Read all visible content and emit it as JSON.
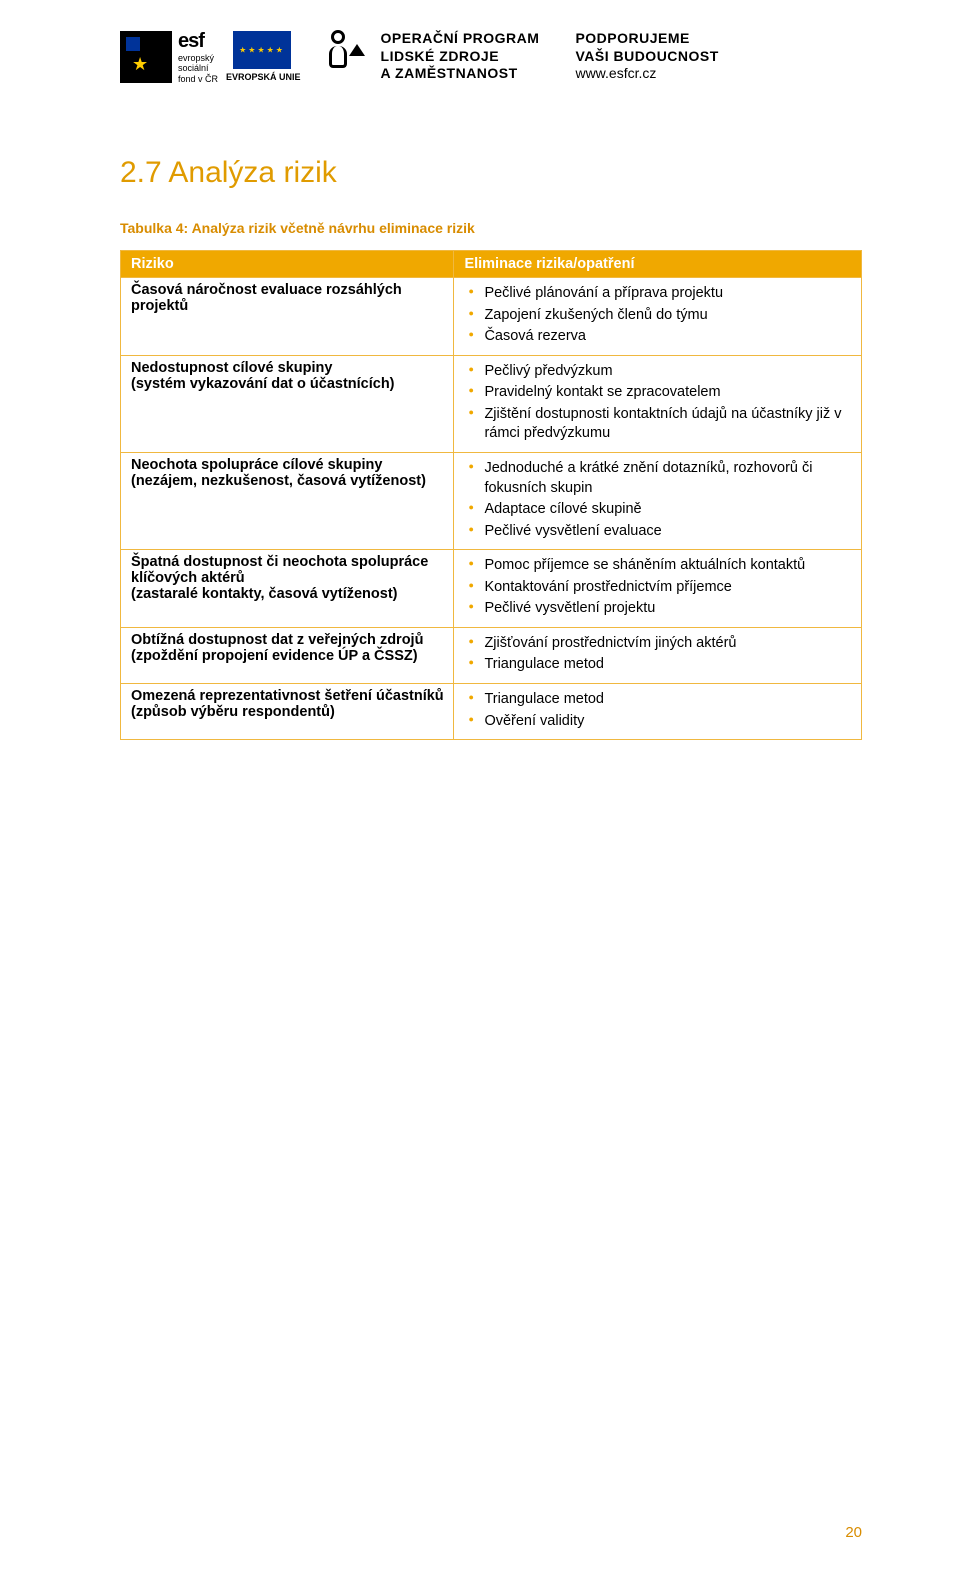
{
  "header": {
    "esf_brand": "esf",
    "esf_lines": [
      "evropský",
      "sociální",
      "fond v ČR"
    ],
    "eu_label": "EVROPSKÁ UNIE",
    "op_lines": [
      "OPERAČNÍ PROGRAM",
      "LIDSKÉ ZDROJE",
      "A ZAMĚSTNANOST"
    ],
    "support_lines_bold": [
      "PODPORUJEME",
      "VAŠI BUDOUCNOST"
    ],
    "support_url": "www.esfcr.cz"
  },
  "heading": "2.7   Analýza rizik",
  "table_caption": "Tabulka 4: Analýza rizik včetně návrhu eliminace rizik",
  "columns": {
    "c1": "Riziko",
    "c2": "Eliminace rizika/opatření"
  },
  "rows": [
    {
      "risk_line1": "Časová náročnost evaluace rozsáhlých",
      "risk_line2": "projektů",
      "measures": [
        "Pečlivé plánování a příprava projektu",
        "Zapojení zkušených členů do týmu",
        "Časová rezerva"
      ]
    },
    {
      "risk_line1": "Nedostupnost cílové skupiny",
      "risk_line2": "(systém vykazování dat o účastnících)",
      "measures": [
        "Pečlivý předvýzkum",
        "Pravidelný kontakt se zpracovatelem",
        "Zjištění dostupnosti kontaktních údajů na účastníky již v rámci předvýzkumu"
      ]
    },
    {
      "risk_line1": "Neochota spolupráce cílové skupiny",
      "risk_line2": "(nezájem, nezkušenost, časová vytíženost)",
      "measures": [
        "Jednoduché a krátké znění dotazníků, rozhovorů či fokusních skupin",
        "Adaptace cílové skupině",
        "Pečlivé vysvětlení evaluace"
      ]
    },
    {
      "risk_line1": "Špatná dostupnost či neochota spolupráce",
      "risk_line2": "klíčových aktérů",
      "risk_line3": "(zastaralé kontakty, časová vytíženost)",
      "measures": [
        "Pomoc příjemce se sháněním aktuálních kontaktů",
        "Kontaktování prostřednictvím příjemce",
        "Pečlivé vysvětlení projektu"
      ]
    },
    {
      "risk_line1": "Obtížná dostupnost dat z veřejných zdrojů",
      "risk_line2": "(zpoždění propojení evidence ÚP a ČSSZ)",
      "measures": [
        "Zjišťování prostřednictvím jiných aktérů",
        "Triangulace metod"
      ]
    },
    {
      "risk_line1": "Omezená reprezentativnost šetření účastníků",
      "risk_line2": "(způsob výběru respondentů)",
      "measures": [
        "Triangulace metod",
        "Ověření validity"
      ]
    }
  ],
  "page_number": "20",
  "colors": {
    "accent": "#f0a800",
    "accent_text": "#d88c00",
    "heading": "#e09b00",
    "border": "#f0b840",
    "header_text": "#ffffff"
  }
}
